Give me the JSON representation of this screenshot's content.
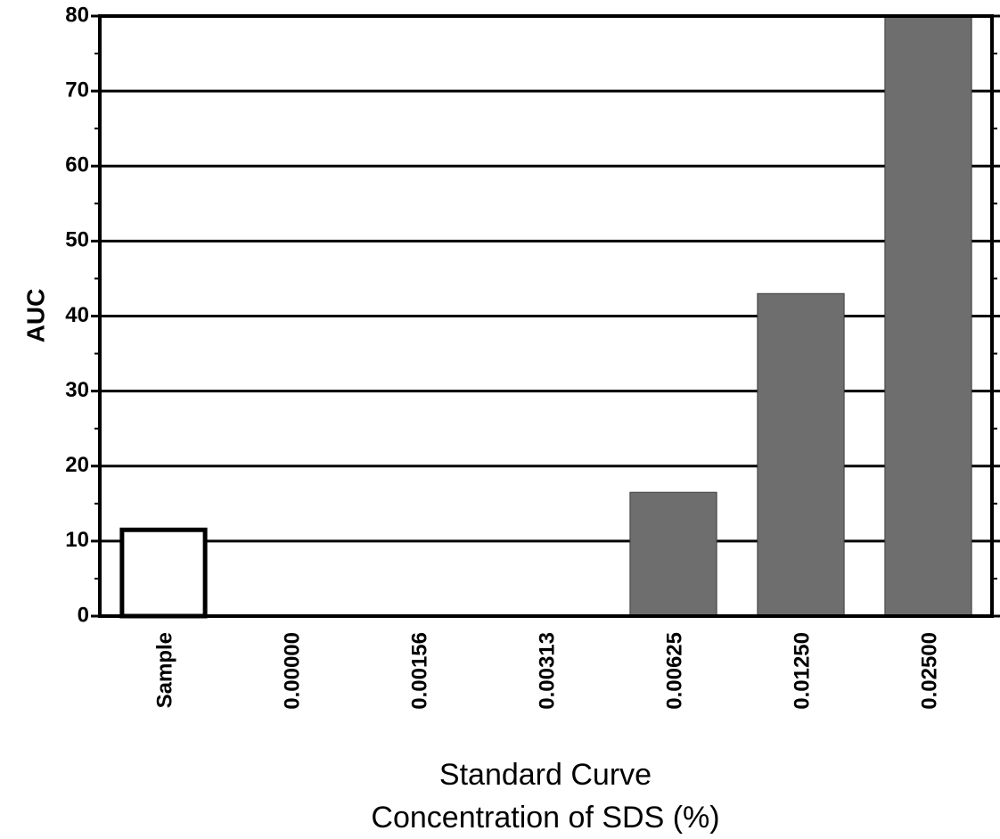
{
  "chart_data": {
    "type": "bar",
    "title": "",
    "xlabel": [
      "Standard Curve",
      "Concentration of SDS (%)"
    ],
    "ylabel": "AUC",
    "categories": [
      "Sample",
      "0.00000",
      "0.00156",
      "0.00313",
      "0.00625",
      "0.01250",
      "0.02500"
    ],
    "values": [
      11.5,
      0,
      0,
      0,
      16.5,
      43,
      80
    ],
    "bar_styles": [
      "outline",
      "filled",
      "filled",
      "filled",
      "filled",
      "filled",
      "filled"
    ],
    "ylim": [
      0,
      80
    ],
    "yticks": [
      0,
      10,
      20,
      30,
      40,
      50,
      60,
      70,
      80
    ],
    "grid": true,
    "colors": {
      "sample_fill": "#ffffff",
      "standard_fill": "#6e6e6e",
      "axis": "#000000"
    }
  }
}
